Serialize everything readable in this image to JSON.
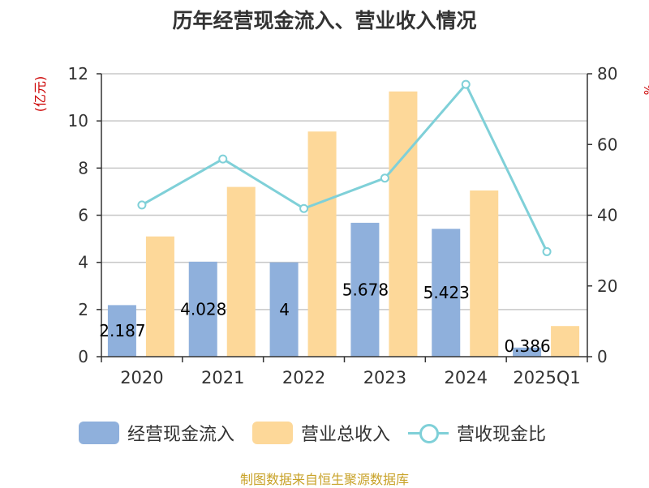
{
  "chart_data": {
    "type": "bar",
    "title": "历年经营现金流入、营业收入情况",
    "left_unit": "(亿元)",
    "right_unit": "%",
    "categories": [
      "2020",
      "2021",
      "2022",
      "2023",
      "2024",
      "2025Q1"
    ],
    "series": [
      {
        "name": "经营现金流入",
        "type": "bar",
        "axis": "left",
        "color": "#8fb0dc",
        "values": [
          2.187,
          4.028,
          4,
          5.678,
          5.423,
          0.386
        ],
        "labels": [
          "2.187",
          "4.028",
          "4",
          "5.678",
          "5.423",
          "0.386"
        ]
      },
      {
        "name": "营业总收入",
        "type": "bar",
        "axis": "left",
        "color": "#fdd899",
        "values": [
          5.1,
          7.2,
          9.55,
          11.25,
          7.05,
          1.3
        ]
      },
      {
        "name": "营收现金比",
        "type": "line",
        "axis": "right",
        "color": "#7fd0d8",
        "values": [
          42.9,
          55.9,
          41.9,
          50.5,
          77.0,
          29.7
        ]
      }
    ],
    "y_left": {
      "min": 0,
      "max": 12,
      "ticks": [
        0,
        2,
        4,
        6,
        8,
        10,
        12
      ]
    },
    "y_right": {
      "min": 0,
      "max": 80,
      "ticks": [
        0,
        20,
        40,
        60,
        80
      ]
    },
    "grid": true,
    "legend_position": "bottom"
  },
  "source": "制图数据来自恒生聚源数据库"
}
